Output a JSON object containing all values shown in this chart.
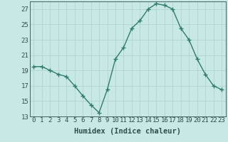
{
  "x": [
    0,
    1,
    2,
    3,
    4,
    5,
    6,
    7,
    8,
    9,
    10,
    11,
    12,
    13,
    14,
    15,
    16,
    17,
    18,
    19,
    20,
    21,
    22,
    23
  ],
  "y": [
    19.5,
    19.5,
    19.0,
    18.5,
    18.2,
    17.0,
    15.7,
    14.5,
    13.5,
    16.5,
    20.5,
    22.0,
    24.5,
    25.5,
    27.0,
    27.7,
    27.5,
    27.0,
    24.5,
    23.0,
    20.5,
    18.5,
    17.0,
    16.5
  ],
  "xlabel": "Humidex (Indice chaleur)",
  "ylim": [
    13,
    28
  ],
  "xlim": [
    -0.5,
    23.5
  ],
  "yticks": [
    13,
    15,
    17,
    19,
    21,
    23,
    25,
    27
  ],
  "xticks": [
    0,
    1,
    2,
    3,
    4,
    5,
    6,
    7,
    8,
    9,
    10,
    11,
    12,
    13,
    14,
    15,
    16,
    17,
    18,
    19,
    20,
    21,
    22,
    23
  ],
  "xtick_labels": [
    "0",
    "1",
    "2",
    "3",
    "4",
    "5",
    "6",
    "7",
    "8",
    "9",
    "10",
    "11",
    "12",
    "13",
    "14",
    "15",
    "16",
    "17",
    "18",
    "19",
    "20",
    "21",
    "22",
    "23"
  ],
  "line_color": "#2e7d6e",
  "marker": "P",
  "marker_size": 2.5,
  "bg_color": "#c8e8e5",
  "grid_color": "#b0d5d0",
  "axis_color": "#2e7d6e",
  "tick_color": "#2e4e4e",
  "xlabel_fontsize": 7.5,
  "tick_fontsize": 6.5
}
